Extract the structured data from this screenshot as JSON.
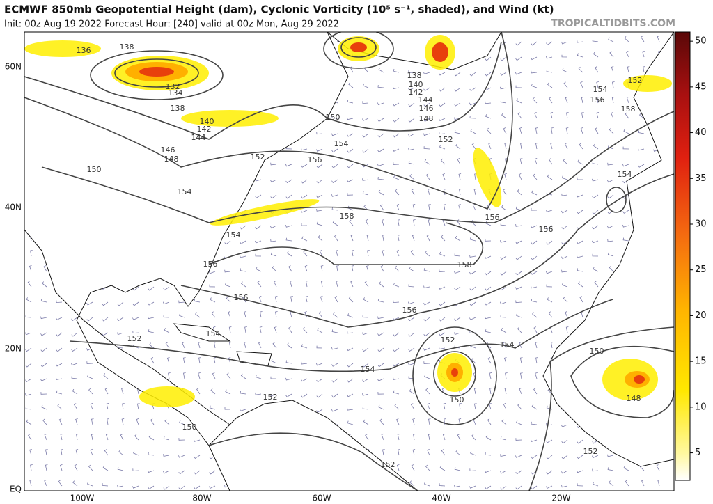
{
  "header": {
    "title": "ECMWF 850mb Geopotential Height (dam), Cyclonic Vorticity (10⁵ s⁻¹, shaded), and Wind (kt)",
    "subtitle": "Init: 00z Aug 19 2022   Forecast Hour: [240]   valid at 00z Mon, Aug 29 2022",
    "site": "TROPICALTIDBITS.COM"
  },
  "map": {
    "lat_labels": [
      "60N",
      "40N",
      "20N",
      "EQ"
    ],
    "lon_labels": [
      "100W",
      "80W",
      "60W",
      "40W",
      "20W"
    ],
    "contour_labels": [
      136,
      138,
      132,
      134,
      138,
      140,
      142,
      144,
      146,
      148,
      150,
      152,
      154,
      156,
      150,
      154,
      152,
      138,
      140,
      142,
      144,
      146,
      148,
      154,
      152,
      156,
      158,
      154,
      158,
      156,
      156,
      154,
      156,
      158,
      156,
      156,
      154,
      152,
      154,
      154,
      152,
      150,
      150,
      152,
      148,
      150,
      152,
      152
    ]
  },
  "colorbar": {
    "lim": [
      2,
      51
    ],
    "ticks": [
      5,
      10,
      15,
      20,
      25,
      30,
      35,
      40,
      45,
      50
    ]
  }
}
